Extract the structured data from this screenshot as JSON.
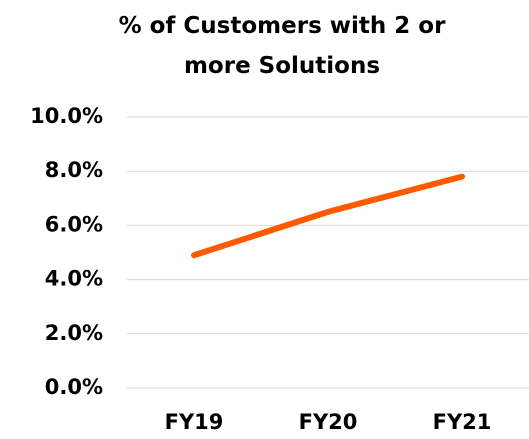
{
  "chart_data": {
    "type": "line",
    "title": "% of Customers with 2 or more Solutions",
    "categories": [
      "FY19",
      "FY20",
      "FY21"
    ],
    "series": [
      {
        "name": "% of Customers with 2 or more Solutions",
        "color": "#ff5a00",
        "values": [
          4.9,
          6.5,
          7.8
        ]
      }
    ],
    "ylim": [
      0,
      10
    ],
    "yticks": [
      {
        "value": 0,
        "label": "0.0%"
      },
      {
        "value": 2,
        "label": "2.0%"
      },
      {
        "value": 4,
        "label": "4.0%"
      },
      {
        "value": 6,
        "label": "6.0%"
      },
      {
        "value": 8,
        "label": "8.0%"
      },
      {
        "value": 10,
        "label": "10.0%"
      }
    ],
    "grid": true
  }
}
